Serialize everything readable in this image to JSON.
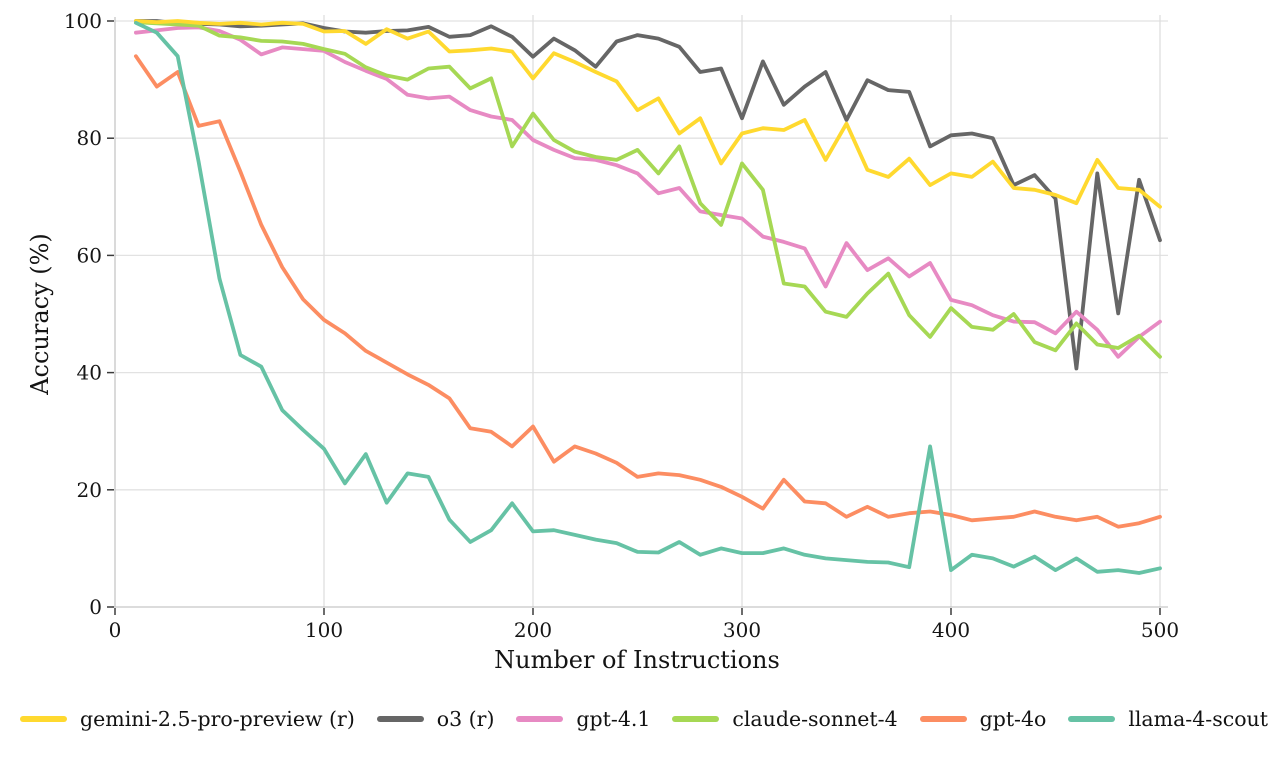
{
  "chart_data": {
    "type": "line",
    "title": "",
    "xlabel": "Number of Instructions",
    "ylabel": "Accuracy (%)",
    "xlim": [
      0,
      500
    ],
    "ylim": [
      0,
      100
    ],
    "xticks": [
      0,
      100,
      200,
      300,
      400,
      500
    ],
    "yticks": [
      0,
      20,
      40,
      60,
      80,
      100
    ],
    "grid": true,
    "legend_position": "bottom",
    "x": [
      10,
      20,
      30,
      40,
      50,
      60,
      70,
      80,
      90,
      100,
      110,
      120,
      130,
      140,
      150,
      160,
      170,
      180,
      190,
      200,
      210,
      220,
      230,
      240,
      250,
      260,
      270,
      280,
      290,
      300,
      310,
      320,
      330,
      340,
      350,
      360,
      370,
      380,
      390,
      400,
      410,
      420,
      430,
      440,
      450,
      460,
      470,
      480,
      490,
      500
    ],
    "series": [
      {
        "name": "gemini-2.5-pro-preview (r)",
        "color": "#FFD92F",
        "values": [
          100,
          99.8,
          100,
          99.7,
          99.5,
          99.7,
          99.4,
          99.7,
          99.5,
          98.2,
          98.3,
          96.1,
          98.6,
          97,
          98.2,
          94.8,
          95,
          95.3,
          94.8,
          90.2,
          94.5,
          93,
          91.3,
          89.7,
          84.8,
          86.8,
          80.8,
          83.4,
          75.7,
          80.8,
          81.7,
          81.4,
          83.1,
          76.3,
          82.5,
          74.6,
          73.4,
          76.5,
          72,
          74,
          73.4,
          76,
          71.5,
          71.2,
          70.3,
          68.9,
          76.3,
          71.5,
          71.2,
          68.3
        ]
      },
      {
        "name": "o3 (r)",
        "color": "#666666",
        "values": [
          100,
          100,
          99.6,
          99.5,
          99.4,
          99.1,
          99.2,
          99.4,
          99.6,
          98.8,
          98.2,
          98,
          98.3,
          98.4,
          99,
          97.3,
          97.6,
          99.1,
          97.3,
          93.9,
          97,
          95,
          92.2,
          96.5,
          97.6,
          97,
          95.6,
          91.3,
          91.9,
          83.4,
          93.1,
          85.7,
          88.8,
          91.3,
          83.1,
          89.9,
          88.2,
          87.9,
          78.6,
          80.5,
          80.8,
          80,
          72,
          73.7,
          69.7,
          40.7,
          74,
          50.1,
          72.9,
          62.6
        ]
      },
      {
        "name": "gpt-4.1",
        "color": "#E78AC3",
        "values": [
          98,
          98.4,
          98.8,
          98.9,
          98.3,
          96.8,
          94.3,
          95.5,
          95.2,
          94.9,
          93,
          91.5,
          90.1,
          87.4,
          86.8,
          87.1,
          84.8,
          83.7,
          83.1,
          79.7,
          78,
          76.6,
          76.3,
          75.4,
          74,
          70.6,
          71.5,
          67.5,
          66.9,
          66.3,
          63.2,
          62.3,
          61.2,
          54.7,
          62.1,
          57.5,
          59.5,
          56.4,
          58.7,
          52.4,
          51.5,
          49.8,
          48.7,
          48.6,
          46.7,
          50.4,
          47.3,
          42.7,
          46.1,
          48.7
        ]
      },
      {
        "name": "claude-sonnet-4",
        "color": "#A6D854",
        "values": [
          99.8,
          99.6,
          99.4,
          99.2,
          97.5,
          97.2,
          96.6,
          96.5,
          96.1,
          95.2,
          94.4,
          92.1,
          90.7,
          90,
          91.9,
          92.2,
          88.5,
          90.2,
          78.6,
          84.2,
          79.7,
          77.7,
          76.8,
          76.3,
          78,
          74,
          78.6,
          68.9,
          65.2,
          75.7,
          71.2,
          55.2,
          54.7,
          50.4,
          49.5,
          53.5,
          56.9,
          49.8,
          46.1,
          51,
          47.8,
          47.3,
          50,
          45.2,
          43.8,
          48.4,
          44.8,
          44.2,
          46.3,
          42.7
        ]
      },
      {
        "name": "gpt-4o",
        "color": "#FC8D62",
        "values": [
          94,
          88.8,
          91.3,
          82.1,
          82.9,
          74.3,
          65.2,
          58,
          52.5,
          49,
          46.7,
          43.7,
          41.7,
          39.7,
          37.9,
          35.6,
          30.5,
          29.9,
          27.4,
          30.8,
          24.8,
          27.4,
          26.2,
          24.6,
          22.2,
          22.8,
          22.5,
          21.7,
          20.5,
          18.8,
          16.8,
          21.7,
          18,
          17.7,
          15.4,
          17.1,
          15.4,
          16,
          16.3,
          15.7,
          14.8,
          15.1,
          15.4,
          16.3,
          15.4,
          14.8,
          15.4,
          13.7,
          14.3,
          15.4
        ]
      },
      {
        "name": "llama-4-scout",
        "color": "#66C2A5",
        "values": [
          99.7,
          98,
          94,
          76,
          56,
          43,
          41,
          33.6,
          30.2,
          27,
          21.1,
          26.1,
          17.8,
          22.8,
          22.2,
          14.9,
          11.1,
          13.1,
          17.7,
          12.9,
          13.1,
          12.3,
          11.5,
          10.9,
          9.4,
          9.3,
          11.1,
          8.9,
          10,
          9.2,
          9.2,
          10,
          8.9,
          8.3,
          8,
          7.7,
          7.6,
          6.8,
          27.4,
          6.3,
          8.9,
          8.3,
          6.9,
          8.6,
          6.3,
          8.3,
          6,
          6.3,
          5.8,
          6.6
        ]
      }
    ]
  }
}
